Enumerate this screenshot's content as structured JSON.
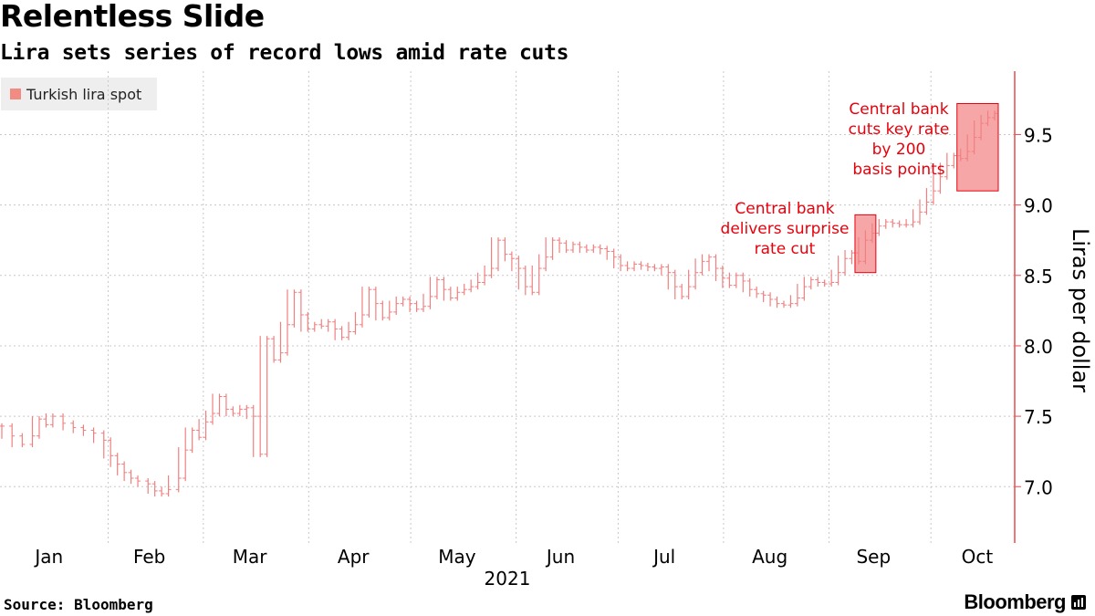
{
  "title": "Relentless Slide",
  "subtitle": "Lira sets series of record lows amid rate cuts",
  "legend": {
    "label": "Turkish lira spot",
    "color": "#f28b82"
  },
  "colors": {
    "series": "#f08080",
    "axis": "#e84d4d",
    "annotation": "#e8000b",
    "box_fill": "#f7a6a8",
    "box_stroke": "#e8000b",
    "grid": "#c8c8c8"
  },
  "source": "Source: Bloomberg",
  "brand": "Bloomberg",
  "brand_icon": "bloomberg-terminal-icon",
  "chart_data": {
    "type": "line",
    "title": "Relentless Slide",
    "subtitle": "Lira sets series of record lows amid rate cuts",
    "series_name": "Turkish lira spot",
    "xlabel": "2021",
    "ylabel": "Liras per dollar",
    "ylim": [
      6.6,
      9.95
    ],
    "yticks": [
      "7.0",
      "7.5",
      "8.0",
      "8.5",
      "9.0",
      "9.5"
    ],
    "ytick_values": [
      7.0,
      7.5,
      8.0,
      8.5,
      9.0,
      9.5
    ],
    "months": [
      "Jan",
      "Feb",
      "Mar",
      "Apr",
      "May",
      "Jun",
      "Jul",
      "Aug",
      "Sep",
      "Oct"
    ],
    "x_range_days": [
      0,
      292
    ],
    "points": [
      [
        0,
        7.43
      ],
      [
        3,
        7.36
      ],
      [
        6,
        7.3
      ],
      [
        9,
        7.36
      ],
      [
        11,
        7.48
      ],
      [
        13,
        7.44
      ],
      [
        15,
        7.5
      ],
      [
        18,
        7.45
      ],
      [
        21,
        7.42
      ],
      [
        24,
        7.4
      ],
      [
        27,
        7.38
      ],
      [
        30,
        7.33
      ],
      [
        32,
        7.22
      ],
      [
        34,
        7.16
      ],
      [
        36,
        7.1
      ],
      [
        38,
        7.06
      ],
      [
        40,
        7.04
      ],
      [
        43,
        7.02
      ],
      [
        45,
        6.97
      ],
      [
        47,
        6.95
      ],
      [
        49,
        6.98
      ],
      [
        52,
        7.06
      ],
      [
        54,
        7.26
      ],
      [
        56,
        7.4
      ],
      [
        58,
        7.35
      ],
      [
        60,
        7.46
      ],
      [
        62,
        7.52
      ],
      [
        64,
        7.64
      ],
      [
        66,
        7.55
      ],
      [
        68,
        7.52
      ],
      [
        70,
        7.55
      ],
      [
        72,
        7.56
      ],
      [
        74,
        7.5
      ],
      [
        76,
        7.23
      ],
      [
        78,
        8.05
      ],
      [
        80,
        7.9
      ],
      [
        82,
        7.95
      ],
      [
        84,
        8.15
      ],
      [
        86,
        8.38
      ],
      [
        88,
        8.22
      ],
      [
        90,
        8.12
      ],
      [
        92,
        8.15
      ],
      [
        94,
        8.14
      ],
      [
        96,
        8.17
      ],
      [
        98,
        8.12
      ],
      [
        100,
        8.06
      ],
      [
        102,
        8.1
      ],
      [
        104,
        8.15
      ],
      [
        106,
        8.22
      ],
      [
        108,
        8.4
      ],
      [
        110,
        8.3
      ],
      [
        112,
        8.2
      ],
      [
        114,
        8.24
      ],
      [
        116,
        8.3
      ],
      [
        118,
        8.33
      ],
      [
        120,
        8.3
      ],
      [
        122,
        8.26
      ],
      [
        124,
        8.28
      ],
      [
        126,
        8.35
      ],
      [
        128,
        8.47
      ],
      [
        130,
        8.4
      ],
      [
        132,
        8.34
      ],
      [
        134,
        8.38
      ],
      [
        136,
        8.4
      ],
      [
        138,
        8.42
      ],
      [
        140,
        8.45
      ],
      [
        142,
        8.5
      ],
      [
        144,
        8.55
      ],
      [
        146,
        8.75
      ],
      [
        148,
        8.65
      ],
      [
        150,
        8.62
      ],
      [
        152,
        8.55
      ],
      [
        154,
        8.42
      ],
      [
        156,
        8.38
      ],
      [
        158,
        8.55
      ],
      [
        160,
        8.63
      ],
      [
        162,
        8.75
      ],
      [
        164,
        8.73
      ],
      [
        166,
        8.68
      ],
      [
        168,
        8.72
      ],
      [
        170,
        8.7
      ],
      [
        172,
        8.68
      ],
      [
        174,
        8.7
      ],
      [
        176,
        8.69
      ],
      [
        178,
        8.67
      ],
      [
        180,
        8.63
      ],
      [
        182,
        8.57
      ],
      [
        184,
        8.55
      ],
      [
        186,
        8.58
      ],
      [
        188,
        8.57
      ],
      [
        190,
        8.56
      ],
      [
        192,
        8.55
      ],
      [
        194,
        8.56
      ],
      [
        196,
        8.52
      ],
      [
        198,
        8.42
      ],
      [
        200,
        8.35
      ],
      [
        202,
        8.42
      ],
      [
        204,
        8.52
      ],
      [
        206,
        8.6
      ],
      [
        208,
        8.63
      ],
      [
        210,
        8.55
      ],
      [
        212,
        8.48
      ],
      [
        214,
        8.43
      ],
      [
        216,
        8.5
      ],
      [
        218,
        8.46
      ],
      [
        220,
        8.4
      ],
      [
        222,
        8.37
      ],
      [
        224,
        8.36
      ],
      [
        226,
        8.33
      ],
      [
        228,
        8.3
      ],
      [
        230,
        8.29
      ],
      [
        232,
        8.3
      ],
      [
        234,
        8.34
      ],
      [
        236,
        8.42
      ],
      [
        238,
        8.47
      ],
      [
        240,
        8.45
      ],
      [
        242,
        8.44
      ],
      [
        244,
        8.45
      ],
      [
        246,
        8.52
      ],
      [
        248,
        8.62
      ],
      [
        250,
        8.66
      ],
      [
        252,
        8.6
      ],
      [
        254,
        8.75
      ],
      [
        256,
        8.8
      ],
      [
        258,
        8.85
      ],
      [
        260,
        8.88
      ],
      [
        262,
        8.87
      ],
      [
        264,
        8.86
      ],
      [
        266,
        8.86
      ],
      [
        268,
        8.88
      ],
      [
        270,
        8.95
      ],
      [
        272,
        9.02
      ],
      [
        274,
        9.1
      ],
      [
        276,
        9.2
      ],
      [
        278,
        9.28
      ],
      [
        280,
        9.35
      ],
      [
        282,
        9.33
      ],
      [
        284,
        9.38
      ],
      [
        286,
        9.48
      ],
      [
        288,
        9.58
      ],
      [
        290,
        9.62
      ],
      [
        292,
        9.65
      ]
    ],
    "annotations": [
      {
        "lines": [
          "Central bank",
          "delivers surprise",
          "rate cut"
        ],
        "day_range": [
          252,
          256
        ],
        "y_range": [
          8.52,
          8.93
        ]
      },
      {
        "lines": [
          "Central bank",
          "cuts key rate",
          "by 200",
          "basis points"
        ],
        "day_range": [
          282,
          292
        ],
        "y_range": [
          9.1,
          9.72
        ]
      }
    ]
  }
}
